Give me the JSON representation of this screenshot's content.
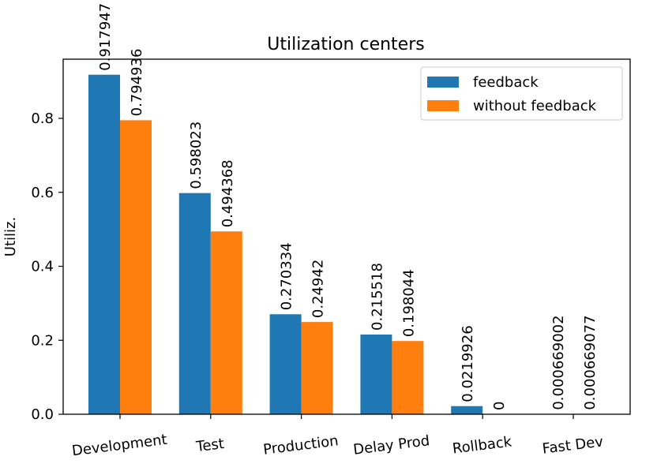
{
  "chart_data": {
    "type": "bar",
    "title": "Utilization centers",
    "xlabel": "",
    "ylabel": "Utiliz.",
    "categories": [
      "Development",
      "Test",
      "Production",
      "Delay Prod",
      "Rollback",
      "Fast Dev"
    ],
    "series": [
      {
        "name": "feedback",
        "color": "#1f77b4",
        "values": [
          0.917947,
          0.598023,
          0.270334,
          0.215518,
          0.0219926,
          0.000669002
        ],
        "labels": [
          "0.917947",
          "0.598023",
          "0.270334",
          "0.215518",
          "0.0219926",
          "0.000669002"
        ]
      },
      {
        "name": "without feedback",
        "color": "#ff7f0e",
        "values": [
          0.794936,
          0.494368,
          0.24942,
          0.198044,
          0,
          0.000669077
        ],
        "labels": [
          "0.794936",
          "0.494368",
          "0.24942",
          "0.198044",
          "0",
          "0.000669077"
        ]
      }
    ],
    "ylim": [
      0,
      0.96
    ],
    "yticks": [
      0.0,
      0.2,
      0.4,
      0.6,
      0.8
    ],
    "ytick_labels": [
      "0.0",
      "0.2",
      "0.4",
      "0.6",
      "0.8"
    ],
    "legend_position": "top-right",
    "grid": false
  }
}
